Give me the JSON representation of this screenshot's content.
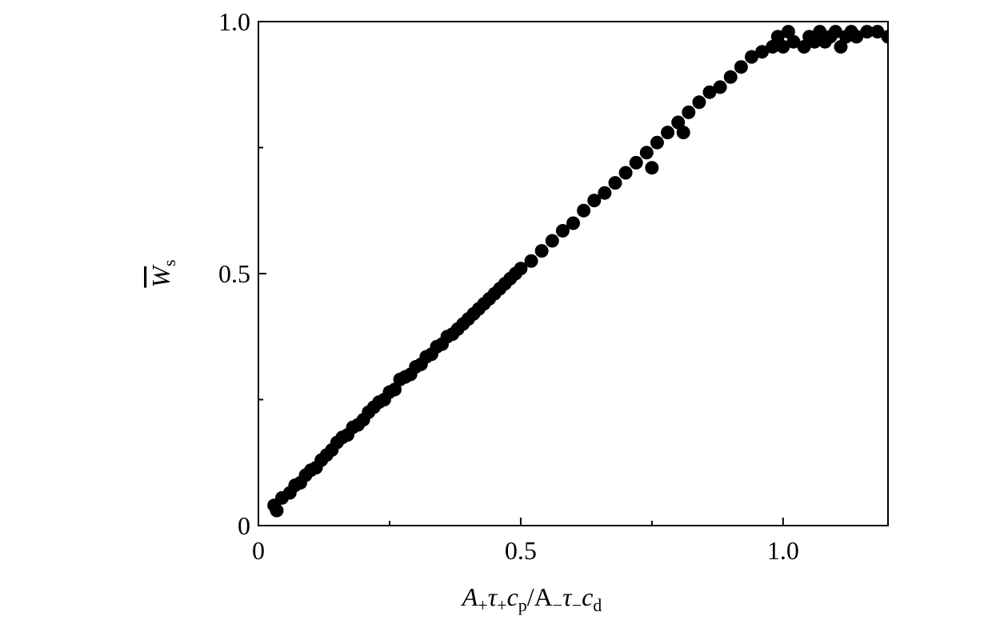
{
  "chart_data": {
    "type": "scatter",
    "xlabel_parts": [
      {
        "text": "A"
      },
      {
        "sub": "+"
      },
      {
        "text": "τ"
      },
      {
        "sub": "+"
      },
      {
        "text": "c"
      },
      {
        "sub": "p"
      },
      {
        "text": "/A"
      },
      {
        "sub": "−"
      },
      {
        "text": "τ"
      },
      {
        "sub": "−"
      },
      {
        "text": "c"
      },
      {
        "sub": "d"
      }
    ],
    "ylabel_parts": [
      {
        "text": "W",
        "overline": true
      },
      {
        "sub": "s"
      }
    ],
    "xlim": [
      0,
      1.2
    ],
    "ylim": [
      0,
      1
    ],
    "xticks": [
      0,
      0.5,
      {
        "value": 1,
        "label": "1.0"
      }
    ],
    "yticks": [
      0,
      0.5,
      {
        "value": 1,
        "label": "1.0"
      }
    ],
    "xminor": [
      0.25,
      0.75
    ],
    "yminor": [
      0.25,
      0.75
    ],
    "color": "#000000",
    "x": [
      0.03,
      0.035,
      0.045,
      0.06,
      0.07,
      0.08,
      0.09,
      0.1,
      0.11,
      0.12,
      0.13,
      0.14,
      0.15,
      0.16,
      0.17,
      0.18,
      0.19,
      0.2,
      0.21,
      0.22,
      0.23,
      0.24,
      0.25,
      0.26,
      0.27,
      0.28,
      0.29,
      0.3,
      0.31,
      0.32,
      0.33,
      0.34,
      0.35,
      0.36,
      0.37,
      0.38,
      0.39,
      0.4,
      0.41,
      0.42,
      0.43,
      0.44,
      0.45,
      0.46,
      0.47,
      0.48,
      0.49,
      0.5,
      0.52,
      0.54,
      0.56,
      0.58,
      0.6,
      0.62,
      0.64,
      0.66,
      0.68,
      0.7,
      0.72,
      0.74,
      0.75,
      0.76,
      0.78,
      0.8,
      0.81,
      0.82,
      0.84,
      0.86,
      0.88,
      0.9,
      0.92,
      0.94,
      0.96,
      0.98,
      0.99,
      1.0,
      1.01,
      1.02,
      1.04,
      1.05,
      1.06,
      1.07,
      1.08,
      1.09,
      1.1,
      1.11,
      1.12,
      1.13,
      1.14,
      1.16,
      1.18,
      1.2
    ],
    "values": [
      0.04,
      0.03,
      0.055,
      0.065,
      0.08,
      0.085,
      0.1,
      0.11,
      0.115,
      0.13,
      0.14,
      0.15,
      0.165,
      0.175,
      0.18,
      0.195,
      0.2,
      0.21,
      0.225,
      0.235,
      0.245,
      0.25,
      0.265,
      0.27,
      0.29,
      0.295,
      0.3,
      0.315,
      0.32,
      0.335,
      0.34,
      0.355,
      0.36,
      0.375,
      0.38,
      0.39,
      0.4,
      0.41,
      0.42,
      0.43,
      0.44,
      0.45,
      0.46,
      0.47,
      0.48,
      0.49,
      0.5,
      0.51,
      0.525,
      0.545,
      0.565,
      0.585,
      0.6,
      0.625,
      0.645,
      0.66,
      0.68,
      0.7,
      0.72,
      0.74,
      0.71,
      0.76,
      0.78,
      0.8,
      0.78,
      0.82,
      0.84,
      0.86,
      0.87,
      0.89,
      0.91,
      0.93,
      0.94,
      0.95,
      0.97,
      0.95,
      0.98,
      0.96,
      0.95,
      0.97,
      0.96,
      0.98,
      0.96,
      0.97,
      0.98,
      0.95,
      0.97,
      0.98,
      0.97,
      0.98,
      0.98,
      0.97
    ]
  }
}
